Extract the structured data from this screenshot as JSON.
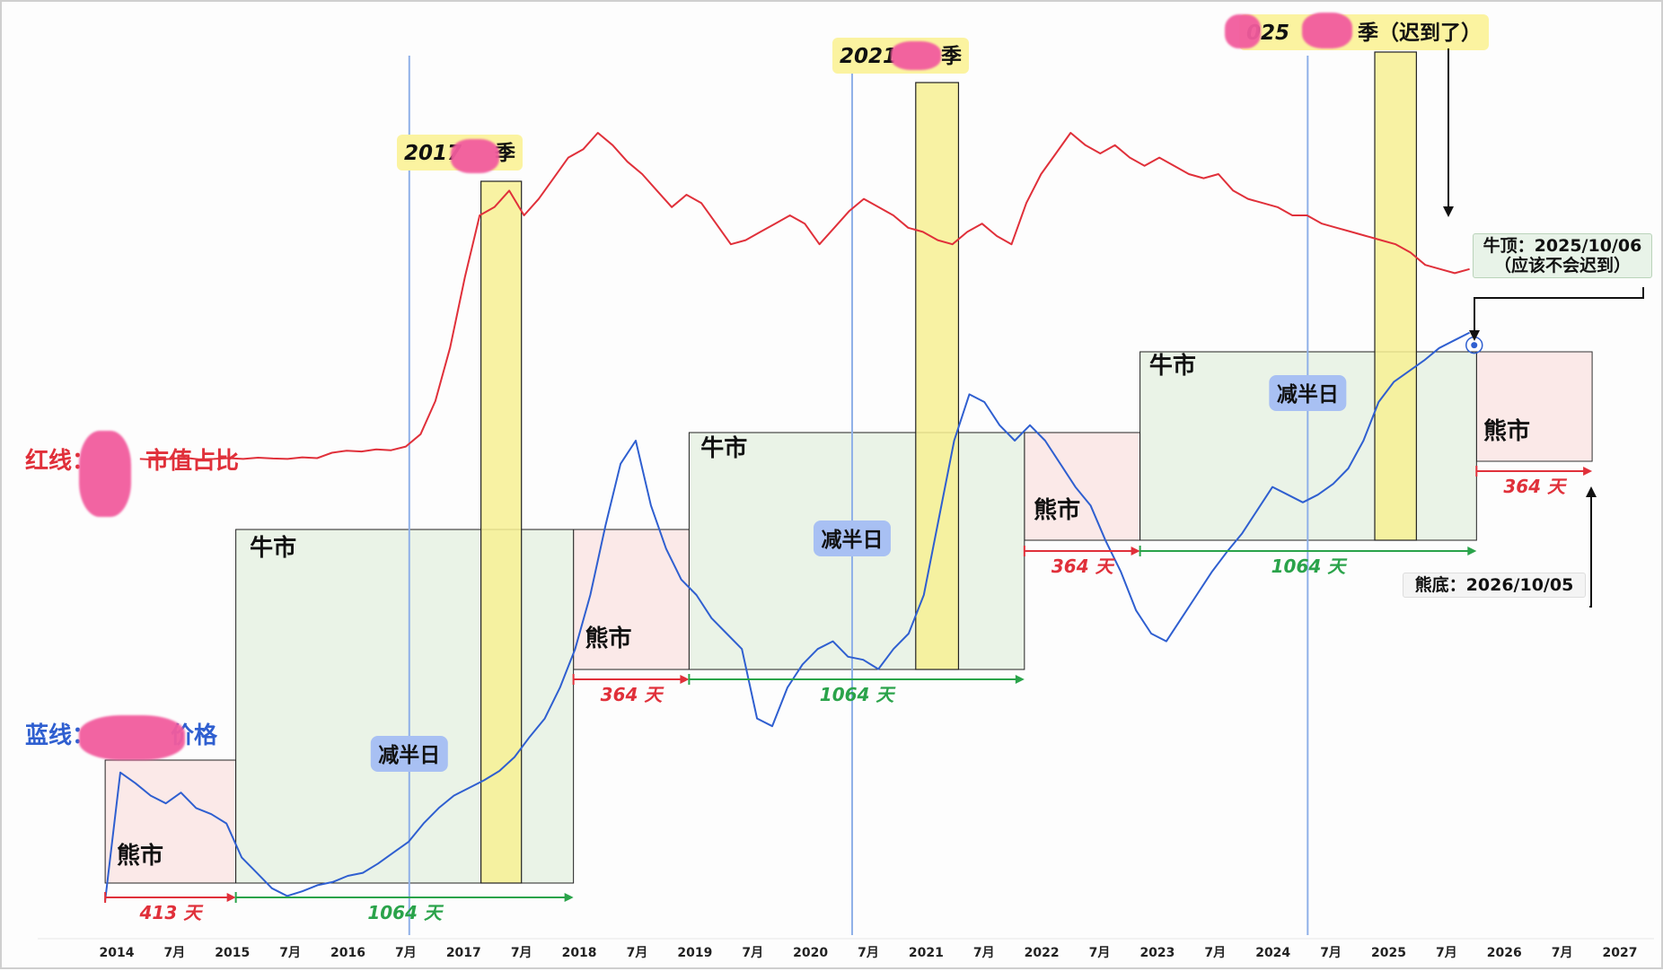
{
  "chart_data": {
    "type": "line",
    "x_ticks": [
      "2014",
      "7月",
      "2015",
      "7月",
      "2016",
      "7月",
      "2017",
      "7月",
      "2018",
      "7月",
      "2019",
      "7月",
      "2020",
      "7月",
      "2021",
      "7月",
      "2022",
      "7月",
      "2023",
      "7月",
      "2024",
      "7月",
      "2025",
      "7月",
      "2026",
      "7月",
      "2027"
    ],
    "series": [
      {
        "name": "红线：",
        "color": "#e0303a",
        "x_start": 2014.2,
        "x_end": 2025.7,
        "values": [
          11,
          10.8,
          11,
          11.3,
          10.9,
          11,
          11.2,
          11,
          11.3,
          11.1,
          11,
          11.4,
          11.2,
          12.5,
          13,
          12.8,
          13.3,
          13.1,
          14,
          17,
          25,
          38,
          55,
          70,
          72,
          76,
          70,
          74,
          79,
          84,
          86,
          90,
          87,
          83,
          80,
          76,
          72,
          75,
          73,
          68,
          63,
          64,
          66,
          68,
          70,
          68,
          63,
          67,
          71,
          74,
          72,
          70,
          67,
          66,
          64,
          63,
          66,
          68,
          65,
          63,
          73,
          80,
          85,
          90,
          87,
          85,
          87,
          84,
          82,
          84,
          82,
          80,
          79,
          80,
          76,
          74,
          73,
          72,
          70,
          70,
          68,
          67,
          66,
          65,
          64,
          63,
          61,
          58,
          57,
          56,
          57
        ]
      },
      {
        "name": "蓝线：",
        "color": "#2f5fd0",
        "x_start": 2013.9,
        "x_end": 2025.7,
        "values": [
          2,
          85,
          78,
          70,
          65,
          72,
          62,
          58,
          52,
          30,
          20,
          10,
          5,
          8,
          12,
          14,
          18,
          20,
          26,
          33,
          40,
          52,
          62,
          70,
          75,
          80,
          86,
          95,
          108,
          120,
          140,
          165,
          200,
          245,
          285,
          300,
          258,
          230,
          210,
          200,
          185,
          175,
          165,
          120,
          115,
          140,
          155,
          165,
          170,
          160,
          158,
          152,
          165,
          175,
          200,
          250,
          300,
          330,
          325,
          310,
          300,
          310,
          300,
          285,
          270,
          258,
          235,
          215,
          190,
          175,
          170,
          185,
          200,
          215,
          228,
          240,
          255,
          270,
          265,
          260,
          265,
          272,
          282,
          300,
          325,
          338,
          345,
          352,
          360,
          365,
          370
        ]
      }
    ],
    "bear_markets": [
      {
        "label": "熊市",
        "days": "413 天"
      },
      {
        "label": "熊市",
        "days": "364 天"
      },
      {
        "label": "熊市",
        "days": "364 天"
      },
      {
        "label": "熊市",
        "days": "364 天"
      }
    ],
    "bull_markets": [
      {
        "label": "牛市",
        "days": "1064 天"
      },
      {
        "label": "牛市",
        "days": "1064 天"
      },
      {
        "label": "牛市",
        "days": "1064 天"
      }
    ],
    "halvings": [
      {
        "label": "减半日",
        "x": 2016.53
      },
      {
        "label": "减半日",
        "x": 2020.36
      },
      {
        "label": "减半日",
        "x": 2024.3
      }
    ],
    "seasons": [
      {
        "label_left": "2017",
        "label_right": "季"
      },
      {
        "label_left": "2021",
        "label_right": "季"
      },
      {
        "label_left": "025",
        "label_right": "季（迟到了）"
      }
    ]
  },
  "annotations": {
    "bull_top_line1": "牛顶：2025/10/06",
    "bull_top_line2": "（应该不会迟到）",
    "bear_bottom": "熊底：2026/10/05"
  },
  "labels": {
    "red_line_a": "红线：",
    "red_line_b": "市值占比",
    "blue_line_a": "蓝线：",
    "blue_line_b": "价格"
  },
  "colors": {
    "red": "#e0303a",
    "blue": "#2f5fd0",
    "bull_fill": "#eaf3e7",
    "bear_fill": "#fbe9e8",
    "season_fill": "#f7f093",
    "halving_line": "#8fb0e8",
    "green_arrow": "#2aa34a"
  }
}
